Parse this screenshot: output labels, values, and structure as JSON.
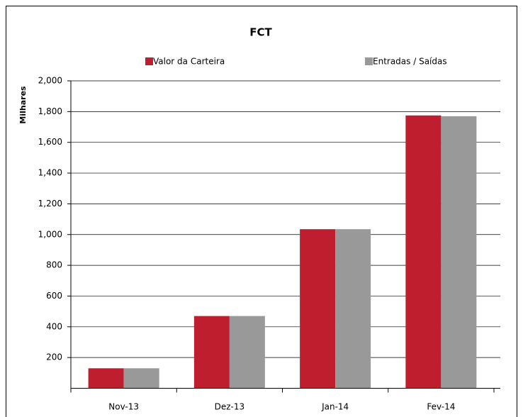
{
  "chart_data": {
    "type": "bar",
    "title": "FCT",
    "y_label": "Milhares",
    "categories": [
      "Nov-13",
      "Dez-13",
      "Jan-14",
      "Fev-14"
    ],
    "series": [
      {
        "name": "Valor da Carteira",
        "color": "#be1e2d",
        "values": [
          130,
          470,
          1035,
          1775
        ]
      },
      {
        "name": "Entradas / Saídas",
        "color": "#999999",
        "values": [
          130,
          470,
          1035,
          1770
        ]
      }
    ],
    "ylim": [
      0,
      2000
    ],
    "yticks": [
      200,
      400,
      600,
      800,
      {
        "value": 1000,
        "label": "1,000"
      },
      {
        "value": 1200,
        "label": "1,200"
      },
      {
        "value": 1400,
        "label": "1,400"
      },
      {
        "value": 1600,
        "label": "1,600"
      },
      {
        "value": 1800,
        "label": "1,800"
      },
      {
        "value": 2000,
        "label": "2,000"
      }
    ],
    "grid": true,
    "legend": "top"
  }
}
